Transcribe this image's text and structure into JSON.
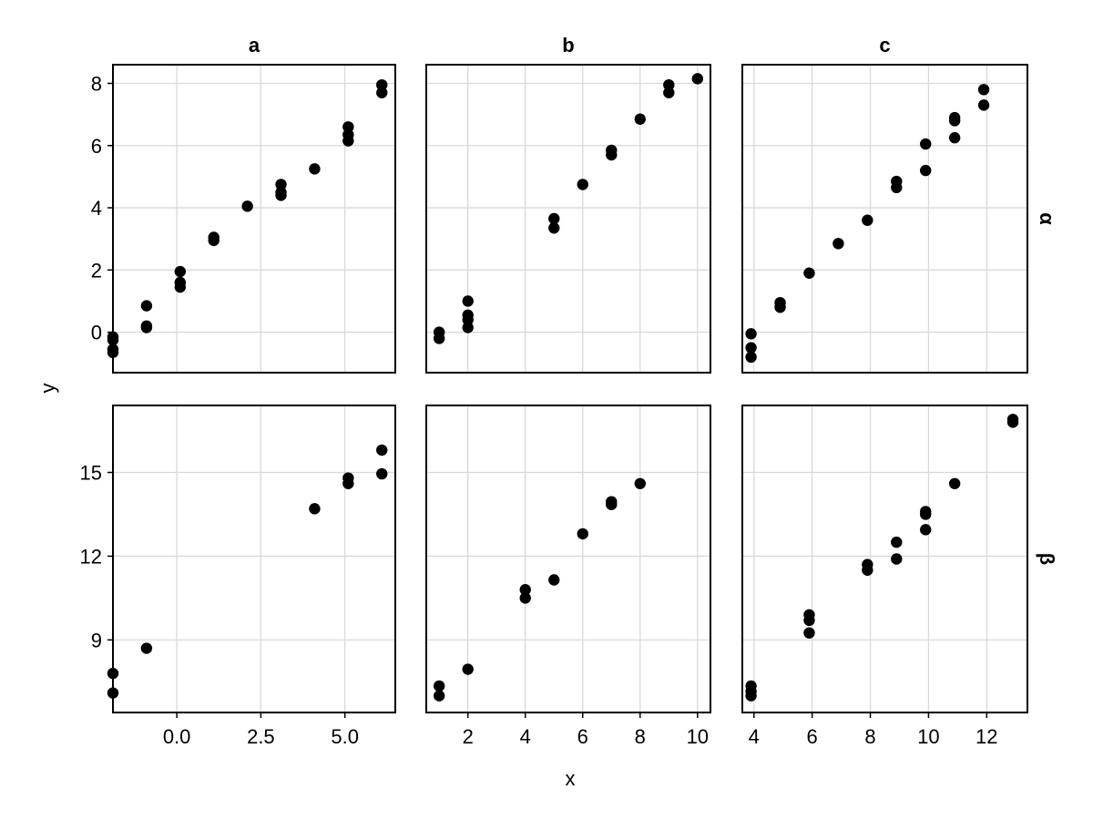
{
  "chart_data": {
    "type": "scatter",
    "facet_columns": [
      "a",
      "b",
      "c"
    ],
    "facet_rows": [
      "α",
      "β"
    ],
    "xlabel": "x",
    "ylabel": "y",
    "point_color": "#000000",
    "grid": true,
    "shared_x_per_column": true,
    "shared_y_per_row": true,
    "columns": [
      {
        "label": "a",
        "xlim": [
          -1.9,
          6.5
        ],
        "xticks": [
          0.0,
          2.5,
          5.0
        ],
        "xticklabels": [
          "0.0",
          "2.5",
          "5.0"
        ]
      },
      {
        "label": "b",
        "xlim": [
          0.55,
          10.45
        ],
        "xticks": [
          2,
          4,
          6,
          8,
          10
        ],
        "xticklabels": [
          "2",
          "4",
          "6",
          "8",
          "10"
        ]
      },
      {
        "label": "c",
        "xlim": [
          3.6,
          13.4
        ],
        "xticks": [
          4,
          6,
          8,
          10,
          12
        ],
        "xticklabels": [
          "4",
          "6",
          "8",
          "10",
          "12"
        ]
      }
    ],
    "rows": [
      {
        "label": "α",
        "ylim": [
          -1.3,
          8.6
        ],
        "yticks": [
          0,
          2,
          4,
          6,
          8
        ],
        "yticklabels": [
          "0",
          "2",
          "4",
          "6",
          "8"
        ]
      },
      {
        "label": "β",
        "ylim": [
          6.4,
          17.4
        ],
        "yticks": [
          9,
          12,
          15
        ],
        "yticklabels": [
          "9",
          "12",
          "15"
        ]
      }
    ],
    "panels": [
      {
        "row": "α",
        "column": "a",
        "x": [
          -1.9,
          -1.9,
          -1.9,
          -1.9,
          -0.9,
          -0.9,
          -0.9,
          0.1,
          0.1,
          0.1,
          1.1,
          1.1,
          2.1,
          3.1,
          3.1,
          3.1,
          4.1,
          5.1,
          5.1,
          5.1,
          6.1,
          6.1
        ],
        "y": [
          -0.15,
          -0.25,
          -0.55,
          -0.65,
          0.85,
          0.15,
          0.2,
          1.95,
          1.6,
          1.45,
          3.05,
          2.95,
          4.05,
          4.75,
          4.5,
          4.4,
          5.25,
          6.6,
          6.35,
          6.15,
          7.95,
          7.7
        ]
      },
      {
        "row": "α",
        "column": "b",
        "x": [
          1,
          1,
          2,
          2,
          2,
          2,
          5,
          5,
          6,
          7,
          7,
          8,
          9,
          9,
          10
        ],
        "y": [
          0.0,
          -0.2,
          1.0,
          0.55,
          0.4,
          0.15,
          3.65,
          3.35,
          4.75,
          5.85,
          5.7,
          6.85,
          7.95,
          7.7,
          8.15
        ]
      },
      {
        "row": "α",
        "column": "c",
        "x": [
          3.9,
          3.9,
          3.9,
          4.9,
          4.9,
          5.9,
          6.9,
          7.9,
          8.9,
          8.9,
          9.9,
          9.9,
          10.9,
          10.9,
          10.9,
          11.9,
          11.9
        ],
        "y": [
          -0.05,
          -0.5,
          -0.8,
          0.95,
          0.8,
          1.9,
          2.85,
          3.6,
          4.85,
          4.65,
          6.05,
          5.2,
          6.9,
          6.8,
          6.25,
          7.8,
          7.3
        ]
      },
      {
        "row": "β",
        "column": "a",
        "x": [
          -1.9,
          -1.9,
          -0.9,
          4.1,
          5.1,
          5.1,
          6.1,
          6.1
        ],
        "y": [
          7.8,
          7.1,
          8.7,
          13.7,
          14.8,
          14.6,
          15.8,
          14.95
        ]
      },
      {
        "row": "β",
        "column": "b",
        "x": [
          1,
          1,
          2,
          4,
          4,
          5,
          6,
          7,
          7,
          8
        ],
        "y": [
          7.35,
          7.0,
          7.95,
          10.8,
          10.5,
          11.15,
          12.8,
          13.95,
          13.85,
          14.6
        ]
      },
      {
        "row": "β",
        "column": "c",
        "x": [
          3.9,
          3.9,
          3.9,
          5.9,
          5.9,
          5.9,
          7.9,
          7.9,
          8.9,
          8.9,
          9.9,
          9.9,
          9.9,
          10.9,
          12.9,
          12.9
        ],
        "y": [
          7.35,
          7.15,
          7.0,
          9.9,
          9.7,
          9.25,
          11.7,
          11.5,
          12.5,
          11.9,
          13.6,
          13.5,
          12.95,
          14.6,
          16.9,
          16.8
        ]
      }
    ]
  }
}
